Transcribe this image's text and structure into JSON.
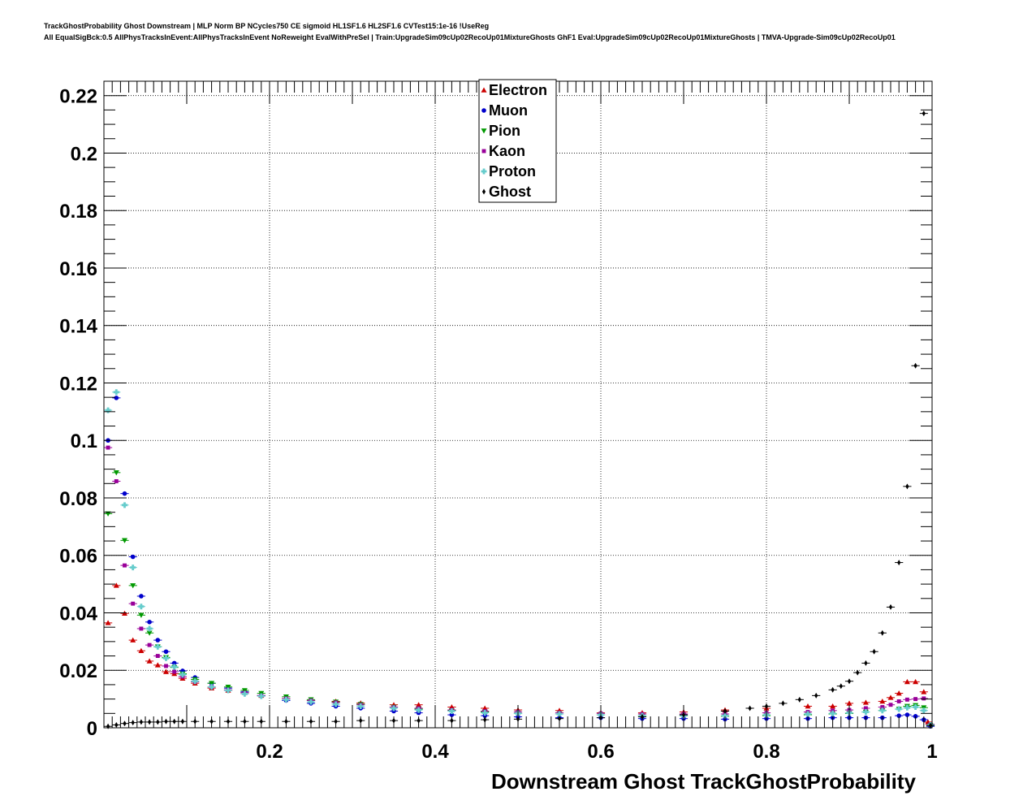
{
  "header": {
    "title_line1": "TrackGhostProbability Ghost Downstream | MLP Norm BP NCycles750 CE sigmoid HL1SF1.6 HL2SF1.6 CVTest15:1e-16 !UseReg",
    "title_line2": "All EqualSigBck:0.5 AllPhysTracksInEvent:AllPhysTracksInEvent NoReweight EvalWithPreSel | Train:UpgradeSim09cUp02RecoUp01MixtureGhosts GhF1 Eval:UpgradeSim09cUp02RecoUp01MixtureGhosts | TMVA-Upgrade-Sim09cUp02RecoUp01"
  },
  "chart_data": {
    "type": "scatter",
    "xlabel": "Downstream Ghost TrackGhostProbability",
    "ylabel": "",
    "xlim": [
      0,
      1
    ],
    "ylim": [
      0,
      0.225
    ],
    "grid": true,
    "legend_position": "top-center",
    "x_ticks": [
      {
        "value": 0.2,
        "label": "0.2"
      },
      {
        "value": 0.4,
        "label": "0.4"
      },
      {
        "value": 0.6,
        "label": "0.6"
      },
      {
        "value": 0.8,
        "label": "0.8"
      },
      {
        "value": 1.0,
        "label": "1"
      }
    ],
    "y_ticks": [
      {
        "value": 0,
        "label": "0"
      },
      {
        "value": 0.02,
        "label": "0.02"
      },
      {
        "value": 0.04,
        "label": "0.04"
      },
      {
        "value": 0.06,
        "label": "0.06"
      },
      {
        "value": 0.08,
        "label": "0.08"
      },
      {
        "value": 0.1,
        "label": "0.1"
      },
      {
        "value": 0.12,
        "label": "0.12"
      },
      {
        "value": 0.14,
        "label": "0.14"
      },
      {
        "value": 0.16,
        "label": "0.16"
      },
      {
        "value": 0.18,
        "label": "0.18"
      },
      {
        "value": 0.2,
        "label": "0.2"
      },
      {
        "value": 0.22,
        "label": "0.22"
      }
    ],
    "bin_width": 0.01,
    "series": [
      {
        "name": "Electron",
        "color": "#cc0000",
        "marker": "triangle-up",
        "points": [
          [
            0.005,
            0.0365
          ],
          [
            0.015,
            0.0495
          ],
          [
            0.025,
            0.0398
          ],
          [
            0.035,
            0.0305
          ],
          [
            0.045,
            0.0268
          ],
          [
            0.055,
            0.0232
          ],
          [
            0.065,
            0.0218
          ],
          [
            0.075,
            0.0195
          ],
          [
            0.085,
            0.0188
          ],
          [
            0.095,
            0.0172
          ],
          [
            0.11,
            0.0155
          ],
          [
            0.13,
            0.0138
          ],
          [
            0.15,
            0.013
          ],
          [
            0.17,
            0.0122
          ],
          [
            0.19,
            0.0112
          ],
          [
            0.22,
            0.0102
          ],
          [
            0.25,
            0.0095
          ],
          [
            0.28,
            0.0092
          ],
          [
            0.31,
            0.0086
          ],
          [
            0.35,
            0.008
          ],
          [
            0.38,
            0.008
          ],
          [
            0.42,
            0.0072
          ],
          [
            0.46,
            0.0068
          ],
          [
            0.5,
            0.0062
          ],
          [
            0.55,
            0.006
          ],
          [
            0.6,
            0.0052
          ],
          [
            0.65,
            0.0052
          ],
          [
            0.7,
            0.0055
          ],
          [
            0.75,
            0.0062
          ],
          [
            0.8,
            0.0068
          ],
          [
            0.85,
            0.0075
          ],
          [
            0.88,
            0.0075
          ],
          [
            0.9,
            0.0085
          ],
          [
            0.92,
            0.0088
          ],
          [
            0.94,
            0.0092
          ],
          [
            0.95,
            0.0105
          ],
          [
            0.96,
            0.012
          ],
          [
            0.97,
            0.016
          ],
          [
            0.98,
            0.016
          ],
          [
            0.99,
            0.0125
          ],
          [
            0.995,
            0.002
          ]
        ]
      },
      {
        "name": "Muon",
        "color": "#0000cc",
        "marker": "circle",
        "points": [
          [
            0.005,
            0.1
          ],
          [
            0.015,
            0.1148
          ],
          [
            0.025,
            0.0815
          ],
          [
            0.035,
            0.0595
          ],
          [
            0.045,
            0.0458
          ],
          [
            0.055,
            0.0368
          ],
          [
            0.065,
            0.0305
          ],
          [
            0.075,
            0.0265
          ],
          [
            0.085,
            0.0225
          ],
          [
            0.095,
            0.0198
          ],
          [
            0.11,
            0.0175
          ],
          [
            0.13,
            0.0155
          ],
          [
            0.15,
            0.0138
          ],
          [
            0.17,
            0.0125
          ],
          [
            0.19,
            0.0112
          ],
          [
            0.22,
            0.0095
          ],
          [
            0.25,
            0.0085
          ],
          [
            0.28,
            0.0075
          ],
          [
            0.31,
            0.0068
          ],
          [
            0.35,
            0.0058
          ],
          [
            0.38,
            0.0052
          ],
          [
            0.42,
            0.0045
          ],
          [
            0.46,
            0.0042
          ],
          [
            0.5,
            0.0038
          ],
          [
            0.55,
            0.0035
          ],
          [
            0.6,
            0.0035
          ],
          [
            0.65,
            0.0032
          ],
          [
            0.7,
            0.0032
          ],
          [
            0.75,
            0.003
          ],
          [
            0.8,
            0.0032
          ],
          [
            0.85,
            0.0032
          ],
          [
            0.88,
            0.0035
          ],
          [
            0.9,
            0.0035
          ],
          [
            0.92,
            0.0035
          ],
          [
            0.94,
            0.0035
          ],
          [
            0.96,
            0.0042
          ],
          [
            0.97,
            0.0045
          ],
          [
            0.98,
            0.004
          ],
          [
            0.99,
            0.0028
          ],
          [
            0.998,
            0.0005
          ]
        ]
      },
      {
        "name": "Pion",
        "color": "#009900",
        "marker": "triangle-down",
        "points": [
          [
            0.005,
            0.0745
          ],
          [
            0.015,
            0.0888
          ],
          [
            0.025,
            0.0652
          ],
          [
            0.035,
            0.0495
          ],
          [
            0.045,
            0.0392
          ],
          [
            0.055,
            0.033
          ],
          [
            0.065,
            0.0282
          ],
          [
            0.075,
            0.0245
          ],
          [
            0.085,
            0.021
          ],
          [
            0.095,
            0.0188
          ],
          [
            0.11,
            0.0168
          ],
          [
            0.13,
            0.0155
          ],
          [
            0.15,
            0.0142
          ],
          [
            0.17,
            0.013
          ],
          [
            0.19,
            0.012
          ],
          [
            0.22,
            0.0108
          ],
          [
            0.25,
            0.0098
          ],
          [
            0.28,
            0.009
          ],
          [
            0.31,
            0.0082
          ],
          [
            0.35,
            0.0072
          ],
          [
            0.38,
            0.0065
          ],
          [
            0.42,
            0.006
          ],
          [
            0.46,
            0.0055
          ],
          [
            0.5,
            0.005
          ],
          [
            0.55,
            0.0048
          ],
          [
            0.6,
            0.0045
          ],
          [
            0.65,
            0.0042
          ],
          [
            0.7,
            0.0042
          ],
          [
            0.75,
            0.004
          ],
          [
            0.8,
            0.0042
          ],
          [
            0.85,
            0.0045
          ],
          [
            0.88,
            0.0048
          ],
          [
            0.9,
            0.005
          ],
          [
            0.92,
            0.0055
          ],
          [
            0.94,
            0.006
          ],
          [
            0.96,
            0.0065
          ],
          [
            0.97,
            0.0075
          ],
          [
            0.98,
            0.0078
          ],
          [
            0.99,
            0.007
          ],
          [
            0.998,
            0.0008
          ]
        ]
      },
      {
        "name": "Kaon",
        "color": "#990099",
        "marker": "square",
        "points": [
          [
            0.005,
            0.0975
          ],
          [
            0.015,
            0.0858
          ],
          [
            0.025,
            0.0565
          ],
          [
            0.035,
            0.0432
          ],
          [
            0.045,
            0.0345
          ],
          [
            0.055,
            0.0288
          ],
          [
            0.065,
            0.025
          ],
          [
            0.075,
            0.0215
          ],
          [
            0.085,
            0.0195
          ],
          [
            0.095,
            0.0178
          ],
          [
            0.11,
            0.016
          ],
          [
            0.13,
            0.0142
          ],
          [
            0.15,
            0.0132
          ],
          [
            0.17,
            0.0122
          ],
          [
            0.19,
            0.0112
          ],
          [
            0.22,
            0.0102
          ],
          [
            0.25,
            0.0095
          ],
          [
            0.28,
            0.0088
          ],
          [
            0.31,
            0.008
          ],
          [
            0.35,
            0.0072
          ],
          [
            0.38,
            0.0068
          ],
          [
            0.42,
            0.0062
          ],
          [
            0.46,
            0.0058
          ],
          [
            0.5,
            0.0055
          ],
          [
            0.55,
            0.0052
          ],
          [
            0.6,
            0.005
          ],
          [
            0.65,
            0.0048
          ],
          [
            0.7,
            0.0048
          ],
          [
            0.75,
            0.0048
          ],
          [
            0.8,
            0.0052
          ],
          [
            0.85,
            0.0055
          ],
          [
            0.88,
            0.006
          ],
          [
            0.9,
            0.0062
          ],
          [
            0.92,
            0.0068
          ],
          [
            0.94,
            0.0072
          ],
          [
            0.95,
            0.008
          ],
          [
            0.96,
            0.0092
          ],
          [
            0.97,
            0.0098
          ],
          [
            0.98,
            0.01
          ],
          [
            0.99,
            0.0102
          ],
          [
            0.998,
            0.0012
          ]
        ]
      },
      {
        "name": "Proton",
        "color": "#66cccc",
        "marker": "cross",
        "points": [
          [
            0.005,
            0.1105
          ],
          [
            0.015,
            0.1168
          ],
          [
            0.025,
            0.0775
          ],
          [
            0.035,
            0.0558
          ],
          [
            0.045,
            0.0422
          ],
          [
            0.055,
            0.0345
          ],
          [
            0.065,
            0.0282
          ],
          [
            0.075,
            0.0242
          ],
          [
            0.085,
            0.0212
          ],
          [
            0.095,
            0.0185
          ],
          [
            0.11,
            0.0162
          ],
          [
            0.13,
            0.0142
          ],
          [
            0.15,
            0.013
          ],
          [
            0.17,
            0.0118
          ],
          [
            0.19,
            0.011
          ],
          [
            0.22,
            0.0098
          ],
          [
            0.25,
            0.009
          ],
          [
            0.28,
            0.0082
          ],
          [
            0.31,
            0.0075
          ],
          [
            0.35,
            0.0068
          ],
          [
            0.38,
            0.0062
          ],
          [
            0.42,
            0.0058
          ],
          [
            0.46,
            0.0052
          ],
          [
            0.5,
            0.005
          ],
          [
            0.55,
            0.0048
          ],
          [
            0.6,
            0.0045
          ],
          [
            0.65,
            0.0042
          ],
          [
            0.7,
            0.0042
          ],
          [
            0.75,
            0.0042
          ],
          [
            0.8,
            0.0045
          ],
          [
            0.85,
            0.0048
          ],
          [
            0.88,
            0.005
          ],
          [
            0.9,
            0.0052
          ],
          [
            0.92,
            0.0055
          ],
          [
            0.94,
            0.006
          ],
          [
            0.96,
            0.0065
          ],
          [
            0.97,
            0.007
          ],
          [
            0.98,
            0.0072
          ],
          [
            0.99,
            0.006
          ],
          [
            0.998,
            0.001
          ]
        ]
      },
      {
        "name": "Ghost",
        "color": "#000000",
        "marker": "diamond",
        "points": [
          [
            0.005,
            0.0005
          ],
          [
            0.015,
            0.001
          ],
          [
            0.025,
            0.0015
          ],
          [
            0.035,
            0.0018
          ],
          [
            0.045,
            0.002
          ],
          [
            0.055,
            0.002
          ],
          [
            0.065,
            0.002
          ],
          [
            0.075,
            0.0022
          ],
          [
            0.085,
            0.0022
          ],
          [
            0.095,
            0.0022
          ],
          [
            0.11,
            0.0022
          ],
          [
            0.13,
            0.0022
          ],
          [
            0.15,
            0.0022
          ],
          [
            0.17,
            0.0022
          ],
          [
            0.19,
            0.0022
          ],
          [
            0.22,
            0.0022
          ],
          [
            0.25,
            0.0022
          ],
          [
            0.28,
            0.0022
          ],
          [
            0.31,
            0.0025
          ],
          [
            0.35,
            0.0025
          ],
          [
            0.38,
            0.0025
          ],
          [
            0.42,
            0.0025
          ],
          [
            0.46,
            0.0028
          ],
          [
            0.5,
            0.003
          ],
          [
            0.55,
            0.0032
          ],
          [
            0.6,
            0.0035
          ],
          [
            0.65,
            0.0038
          ],
          [
            0.7,
            0.0045
          ],
          [
            0.75,
            0.0058
          ],
          [
            0.78,
            0.0068
          ],
          [
            0.8,
            0.0075
          ],
          [
            0.82,
            0.0085
          ],
          [
            0.84,
            0.0098
          ],
          [
            0.86,
            0.0112
          ],
          [
            0.88,
            0.0132
          ],
          [
            0.89,
            0.0145
          ],
          [
            0.9,
            0.0162
          ],
          [
            0.91,
            0.0192
          ],
          [
            0.92,
            0.0225
          ],
          [
            0.93,
            0.0265
          ],
          [
            0.94,
            0.033
          ],
          [
            0.95,
            0.042
          ],
          [
            0.96,
            0.0575
          ],
          [
            0.97,
            0.084
          ],
          [
            0.98,
            0.126
          ],
          [
            0.99,
            0.2138
          ],
          [
            0.998,
            0.0008
          ]
        ]
      }
    ]
  }
}
